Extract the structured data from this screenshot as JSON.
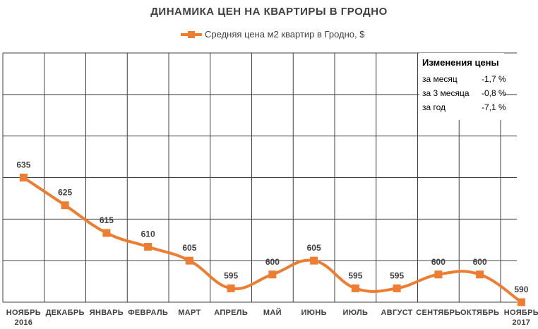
{
  "title": "ДИНАМИКА ЦЕН НА КВАРТИРЫ В ГРОДНО",
  "legend_label": "Средняя цена м2 квартир в Гродно, $",
  "colors": {
    "series": "#ED7D31",
    "grid": "#404040",
    "text": "#404040"
  },
  "changes": {
    "heading": "Изменения цены",
    "rows": [
      {
        "label": "за месяц",
        "value": "-1,7 %"
      },
      {
        "label": "за 3 месяца",
        "value": "-0,8 %"
      },
      {
        "label": "за год",
        "value": "-7,1 %"
      }
    ]
  },
  "chart_data": {
    "type": "line",
    "title": "ДИНАМИКА ЦЕН НА КВАРТИРЫ В ГРОДНО",
    "categories": [
      "НОЯБРЬ 2016",
      "ДЕКАБРЬ",
      "ЯНВАРЬ",
      "ФЕВРАЛЬ",
      "МАРТ",
      "АПРЕЛЬ",
      "МАЙ",
      "ИЮНЬ",
      "ИЮЛЬ",
      "АВГУСТ",
      "СЕНТЯБРЬ",
      "ОКТЯБРЬ",
      "НОЯБРЬ 2017"
    ],
    "category_lines": [
      [
        "НОЯБРЬ",
        "2016"
      ],
      [
        "ДЕКАБРЬ"
      ],
      [
        "ЯНВАРЬ"
      ],
      [
        "ФЕВРАЛЬ"
      ],
      [
        "МАРТ"
      ],
      [
        "АПРЕЛЬ"
      ],
      [
        "МАЙ"
      ],
      [
        "ИЮНЬ"
      ],
      [
        "ИЮЛЬ"
      ],
      [
        "АВГУСТ"
      ],
      [
        "СЕНТЯБРЬ"
      ],
      [
        "ОКТЯБРЬ"
      ],
      [
        "НОЯБРЬ",
        "2017"
      ]
    ],
    "series": [
      {
        "name": "Средняя цена м2 квартир в Гродно, $",
        "values": [
          635,
          625,
          615,
          610,
          605,
          595,
          600,
          605,
          595,
          595,
          600,
          600,
          590
        ],
        "data_labels": [
          "635",
          "625",
          "615",
          "610",
          "605",
          "595",
          "600",
          "605",
          "595",
          "595",
          "600",
          "600",
          "590"
        ]
      }
    ],
    "smooth": true,
    "marker": "square",
    "ylim": [
      590,
      680
    ],
    "grid": true,
    "legend_position": "top"
  }
}
